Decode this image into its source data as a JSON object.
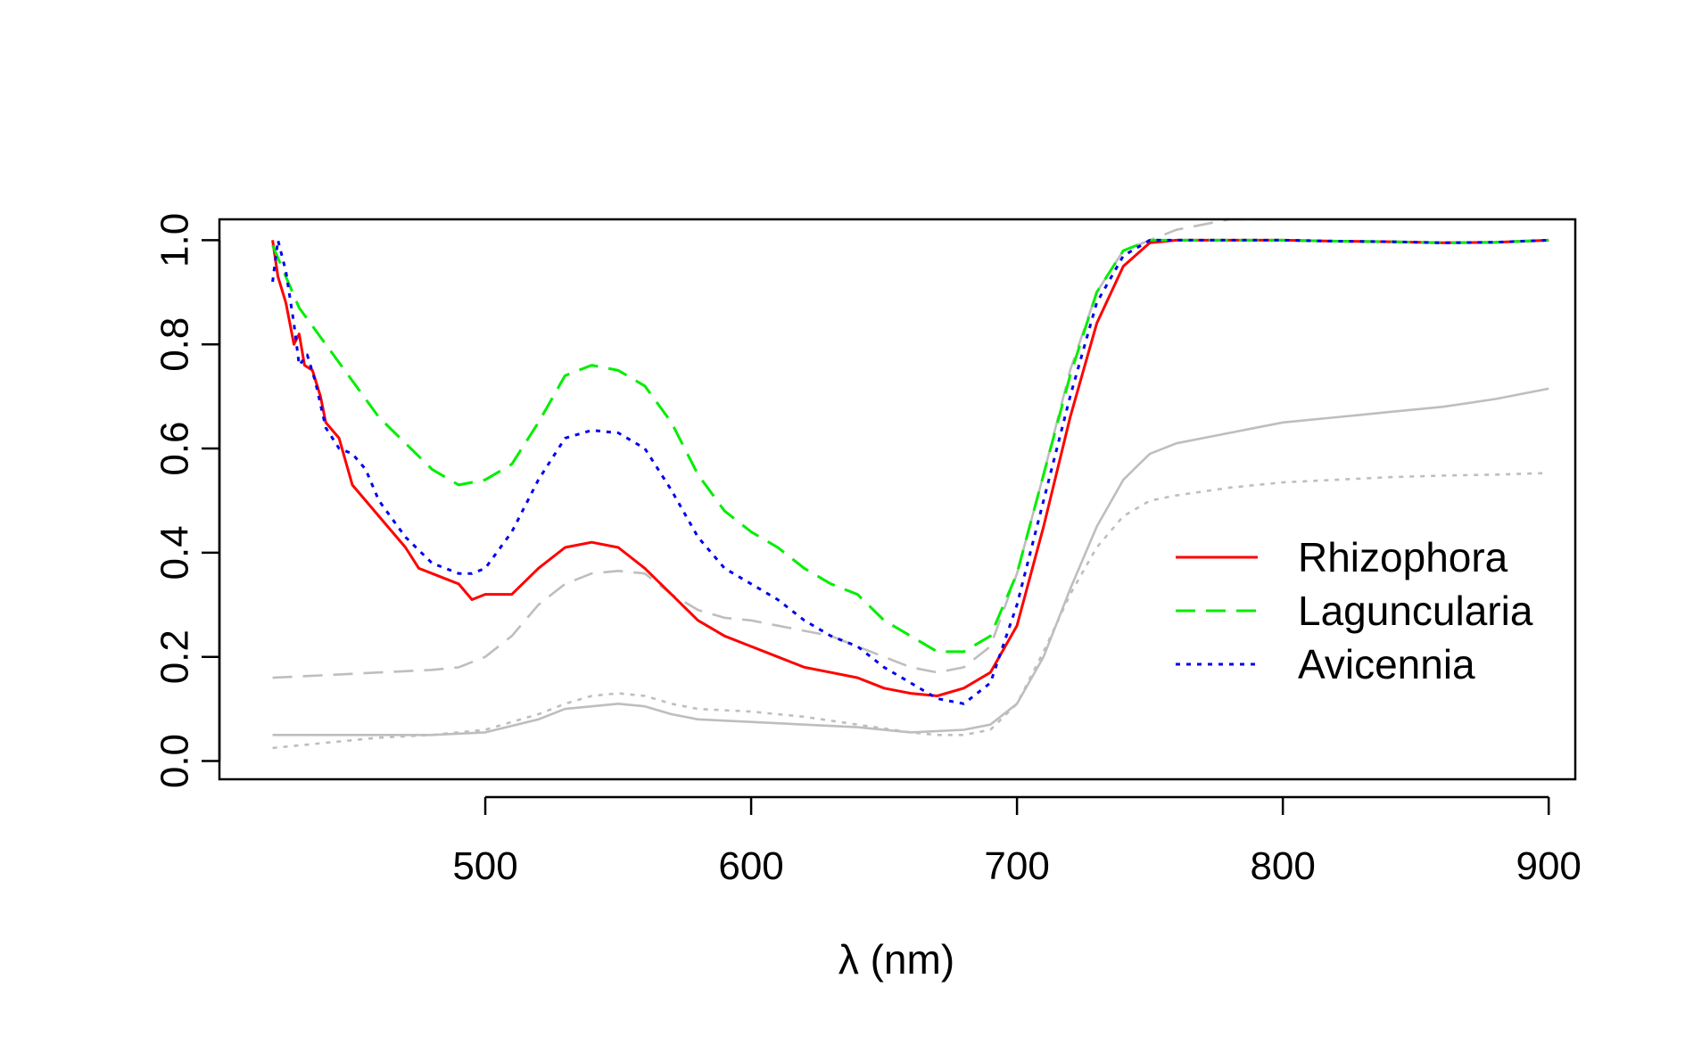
{
  "chart_data": {
    "type": "line",
    "title": "",
    "xlabel": "λ (nm)",
    "ylabel": "",
    "xlim": [
      400,
      910
    ],
    "ylim": [
      -0.035,
      1.04
    ],
    "x_ticks": [
      500,
      600,
      700,
      800,
      900
    ],
    "x_tick_labels": [
      "500",
      "600",
      "700",
      "800",
      "900"
    ],
    "y_ticks": [
      0.0,
      0.2,
      0.4,
      0.6,
      0.8,
      1.0
    ],
    "y_tick_labels": [
      "0.0",
      "0.2",
      "0.4",
      "0.6",
      "0.8",
      "1.0"
    ],
    "grid": false,
    "legend": {
      "position": "right",
      "entries": [
        "Rhizophora",
        "Laguncularia",
        "Avicennia"
      ]
    },
    "colors": {
      "rhizophora": "#ff0000",
      "laguncularia": "#00ee00",
      "avicennia": "#0000ee",
      "reference": "#bebebe"
    },
    "series": [
      {
        "name": "Rhizophora",
        "color": "#ff0000",
        "dash": "solid",
        "points": [
          [
            420,
            1.0
          ],
          [
            422,
            0.93
          ],
          [
            425,
            0.88
          ],
          [
            428,
            0.8
          ],
          [
            430,
            0.82
          ],
          [
            432,
            0.76
          ],
          [
            435,
            0.75
          ],
          [
            438,
            0.7
          ],
          [
            440,
            0.65
          ],
          [
            445,
            0.62
          ],
          [
            450,
            0.53
          ],
          [
            460,
            0.47
          ],
          [
            470,
            0.41
          ],
          [
            475,
            0.37
          ],
          [
            480,
            0.36
          ],
          [
            490,
            0.34
          ],
          [
            495,
            0.31
          ],
          [
            500,
            0.32
          ],
          [
            510,
            0.32
          ],
          [
            520,
            0.37
          ],
          [
            530,
            0.41
          ],
          [
            540,
            0.42
          ],
          [
            550,
            0.41
          ],
          [
            560,
            0.37
          ],
          [
            570,
            0.32
          ],
          [
            580,
            0.27
          ],
          [
            590,
            0.24
          ],
          [
            600,
            0.22
          ],
          [
            610,
            0.2
          ],
          [
            620,
            0.18
          ],
          [
            630,
            0.17
          ],
          [
            640,
            0.16
          ],
          [
            650,
            0.14
          ],
          [
            660,
            0.13
          ],
          [
            670,
            0.125
          ],
          [
            680,
            0.14
          ],
          [
            690,
            0.17
          ],
          [
            700,
            0.26
          ],
          [
            710,
            0.45
          ],
          [
            720,
            0.66
          ],
          [
            730,
            0.84
          ],
          [
            740,
            0.95
          ],
          [
            750,
            0.995
          ],
          [
            760,
            1.0
          ],
          [
            780,
            1.0
          ],
          [
            800,
            1.0
          ],
          [
            820,
            0.998
          ],
          [
            840,
            0.997
          ],
          [
            860,
            0.995
          ],
          [
            880,
            0.996
          ],
          [
            900,
            1.0
          ]
        ]
      },
      {
        "name": "Laguncularia",
        "color": "#00ee00",
        "dash": "dashed",
        "points": [
          [
            420,
            0.99
          ],
          [
            425,
            0.93
          ],
          [
            430,
            0.87
          ],
          [
            440,
            0.8
          ],
          [
            450,
            0.73
          ],
          [
            460,
            0.66
          ],
          [
            470,
            0.61
          ],
          [
            480,
            0.56
          ],
          [
            490,
            0.53
          ],
          [
            500,
            0.54
          ],
          [
            510,
            0.57
          ],
          [
            520,
            0.65
          ],
          [
            530,
            0.74
          ],
          [
            540,
            0.76
          ],
          [
            550,
            0.75
          ],
          [
            560,
            0.72
          ],
          [
            570,
            0.65
          ],
          [
            580,
            0.55
          ],
          [
            590,
            0.48
          ],
          [
            600,
            0.44
          ],
          [
            610,
            0.41
          ],
          [
            620,
            0.37
          ],
          [
            630,
            0.34
          ],
          [
            640,
            0.32
          ],
          [
            650,
            0.27
          ],
          [
            660,
            0.24
          ],
          [
            670,
            0.21
          ],
          [
            680,
            0.21
          ],
          [
            690,
            0.24
          ],
          [
            700,
            0.36
          ],
          [
            710,
            0.55
          ],
          [
            720,
            0.74
          ],
          [
            730,
            0.9
          ],
          [
            740,
            0.98
          ],
          [
            750,
            1.0
          ],
          [
            780,
            1.0
          ],
          [
            800,
            1.0
          ],
          [
            820,
            0.998
          ],
          [
            840,
            0.997
          ],
          [
            860,
            0.995
          ],
          [
            880,
            0.996
          ],
          [
            900,
            1.0
          ]
        ]
      },
      {
        "name": "Avicennia",
        "color": "#0000ee",
        "dash": "dotted",
        "points": [
          [
            420,
            0.92
          ],
          [
            422,
            1.0
          ],
          [
            425,
            0.94
          ],
          [
            428,
            0.84
          ],
          [
            430,
            0.76
          ],
          [
            433,
            0.78
          ],
          [
            436,
            0.73
          ],
          [
            440,
            0.64
          ],
          [
            445,
            0.6
          ],
          [
            450,
            0.59
          ],
          [
            455,
            0.56
          ],
          [
            460,
            0.5
          ],
          [
            470,
            0.43
          ],
          [
            480,
            0.38
          ],
          [
            490,
            0.36
          ],
          [
            495,
            0.36
          ],
          [
            500,
            0.37
          ],
          [
            510,
            0.44
          ],
          [
            520,
            0.54
          ],
          [
            530,
            0.62
          ],
          [
            540,
            0.635
          ],
          [
            550,
            0.63
          ],
          [
            560,
            0.6
          ],
          [
            570,
            0.52
          ],
          [
            580,
            0.43
          ],
          [
            590,
            0.37
          ],
          [
            600,
            0.34
          ],
          [
            610,
            0.31
          ],
          [
            620,
            0.27
          ],
          [
            630,
            0.24
          ],
          [
            640,
            0.22
          ],
          [
            650,
            0.18
          ],
          [
            660,
            0.15
          ],
          [
            670,
            0.12
          ],
          [
            680,
            0.11
          ],
          [
            690,
            0.15
          ],
          [
            700,
            0.3
          ],
          [
            710,
            0.5
          ],
          [
            720,
            0.7
          ],
          [
            730,
            0.88
          ],
          [
            740,
            0.97
          ],
          [
            750,
            1.0
          ],
          [
            780,
            1.0
          ],
          [
            800,
            1.0
          ],
          [
            820,
            0.998
          ],
          [
            840,
            0.997
          ],
          [
            860,
            0.995
          ],
          [
            880,
            0.996
          ],
          [
            900,
            1.0
          ]
        ]
      },
      {
        "color": "#bebebe",
        "dash": "dashed",
        "points": [
          [
            420,
            0.16
          ],
          [
            440,
            0.165
          ],
          [
            460,
            0.17
          ],
          [
            480,
            0.175
          ],
          [
            490,
            0.18
          ],
          [
            500,
            0.2
          ],
          [
            510,
            0.24
          ],
          [
            520,
            0.3
          ],
          [
            530,
            0.34
          ],
          [
            540,
            0.36
          ],
          [
            550,
            0.365
          ],
          [
            560,
            0.36
          ],
          [
            570,
            0.32
          ],
          [
            580,
            0.29
          ],
          [
            590,
            0.275
          ],
          [
            600,
            0.27
          ],
          [
            610,
            0.26
          ],
          [
            620,
            0.25
          ],
          [
            630,
            0.24
          ],
          [
            640,
            0.22
          ],
          [
            650,
            0.2
          ],
          [
            660,
            0.18
          ],
          [
            670,
            0.17
          ],
          [
            680,
            0.18
          ],
          [
            690,
            0.22
          ],
          [
            700,
            0.36
          ],
          [
            710,
            0.55
          ],
          [
            720,
            0.75
          ],
          [
            730,
            0.9
          ],
          [
            740,
            0.98
          ],
          [
            750,
            1.0
          ],
          [
            760,
            1.02
          ],
          [
            780,
            1.04
          ],
          [
            800,
            1.04
          ]
        ]
      },
      {
        "color": "#bebebe",
        "dash": "solid",
        "points": [
          [
            420,
            0.05
          ],
          [
            450,
            0.05
          ],
          [
            480,
            0.05
          ],
          [
            500,
            0.055
          ],
          [
            520,
            0.08
          ],
          [
            530,
            0.1
          ],
          [
            540,
            0.105
          ],
          [
            550,
            0.11
          ],
          [
            560,
            0.105
          ],
          [
            570,
            0.09
          ],
          [
            580,
            0.08
          ],
          [
            600,
            0.075
          ],
          [
            620,
            0.07
          ],
          [
            640,
            0.065
          ],
          [
            660,
            0.055
          ],
          [
            680,
            0.06
          ],
          [
            690,
            0.07
          ],
          [
            700,
            0.11
          ],
          [
            710,
            0.2
          ],
          [
            720,
            0.33
          ],
          [
            730,
            0.45
          ],
          [
            740,
            0.54
          ],
          [
            750,
            0.59
          ],
          [
            760,
            0.61
          ],
          [
            780,
            0.63
          ],
          [
            800,
            0.65
          ],
          [
            820,
            0.66
          ],
          [
            840,
            0.67
          ],
          [
            860,
            0.68
          ],
          [
            880,
            0.695
          ],
          [
            900,
            0.715
          ]
        ]
      },
      {
        "color": "#bebebe",
        "dash": "dotted",
        "points": [
          [
            420,
            0.025
          ],
          [
            440,
            0.035
          ],
          [
            460,
            0.045
          ],
          [
            480,
            0.05
          ],
          [
            500,
            0.06
          ],
          [
            520,
            0.09
          ],
          [
            530,
            0.11
          ],
          [
            540,
            0.125
          ],
          [
            550,
            0.13
          ],
          [
            560,
            0.125
          ],
          [
            570,
            0.11
          ],
          [
            580,
            0.1
          ],
          [
            600,
            0.095
          ],
          [
            620,
            0.085
          ],
          [
            640,
            0.07
          ],
          [
            660,
            0.055
          ],
          [
            670,
            0.05
          ],
          [
            680,
            0.05
          ],
          [
            690,
            0.06
          ],
          [
            700,
            0.11
          ],
          [
            710,
            0.21
          ],
          [
            720,
            0.32
          ],
          [
            730,
            0.41
          ],
          [
            740,
            0.47
          ],
          [
            750,
            0.5
          ],
          [
            760,
            0.51
          ],
          [
            780,
            0.525
          ],
          [
            800,
            0.535
          ],
          [
            820,
            0.54
          ],
          [
            840,
            0.545
          ],
          [
            860,
            0.548
          ],
          [
            880,
            0.55
          ],
          [
            900,
            0.553
          ]
        ]
      }
    ]
  }
}
